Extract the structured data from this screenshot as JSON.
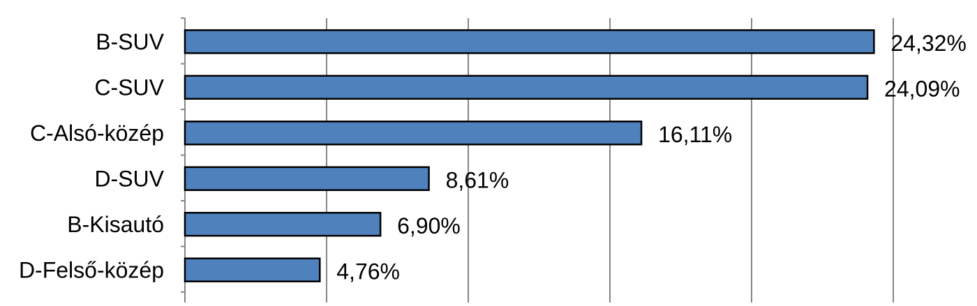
{
  "chart_data": {
    "type": "bar",
    "orientation": "horizontal",
    "categories": [
      "B-SUV",
      "C-SUV",
      "C-Alsó-közép",
      "D-SUV",
      "B-Kisautó",
      "D-Felső-közép"
    ],
    "values": [
      24.32,
      24.09,
      16.11,
      8.61,
      6.9,
      4.76
    ],
    "data_labels": [
      "24,32%",
      "24,09%",
      "16,11%",
      "8,61%",
      "6,90%",
      "4,76%"
    ],
    "value_unit": "%",
    "xlim": [
      0,
      25
    ],
    "grid": true,
    "legend": "none",
    "colors": {
      "bar_fill": "#4f81bd",
      "bar_stroke": "#000000",
      "grid": "#868686",
      "axis": "#868686"
    }
  }
}
